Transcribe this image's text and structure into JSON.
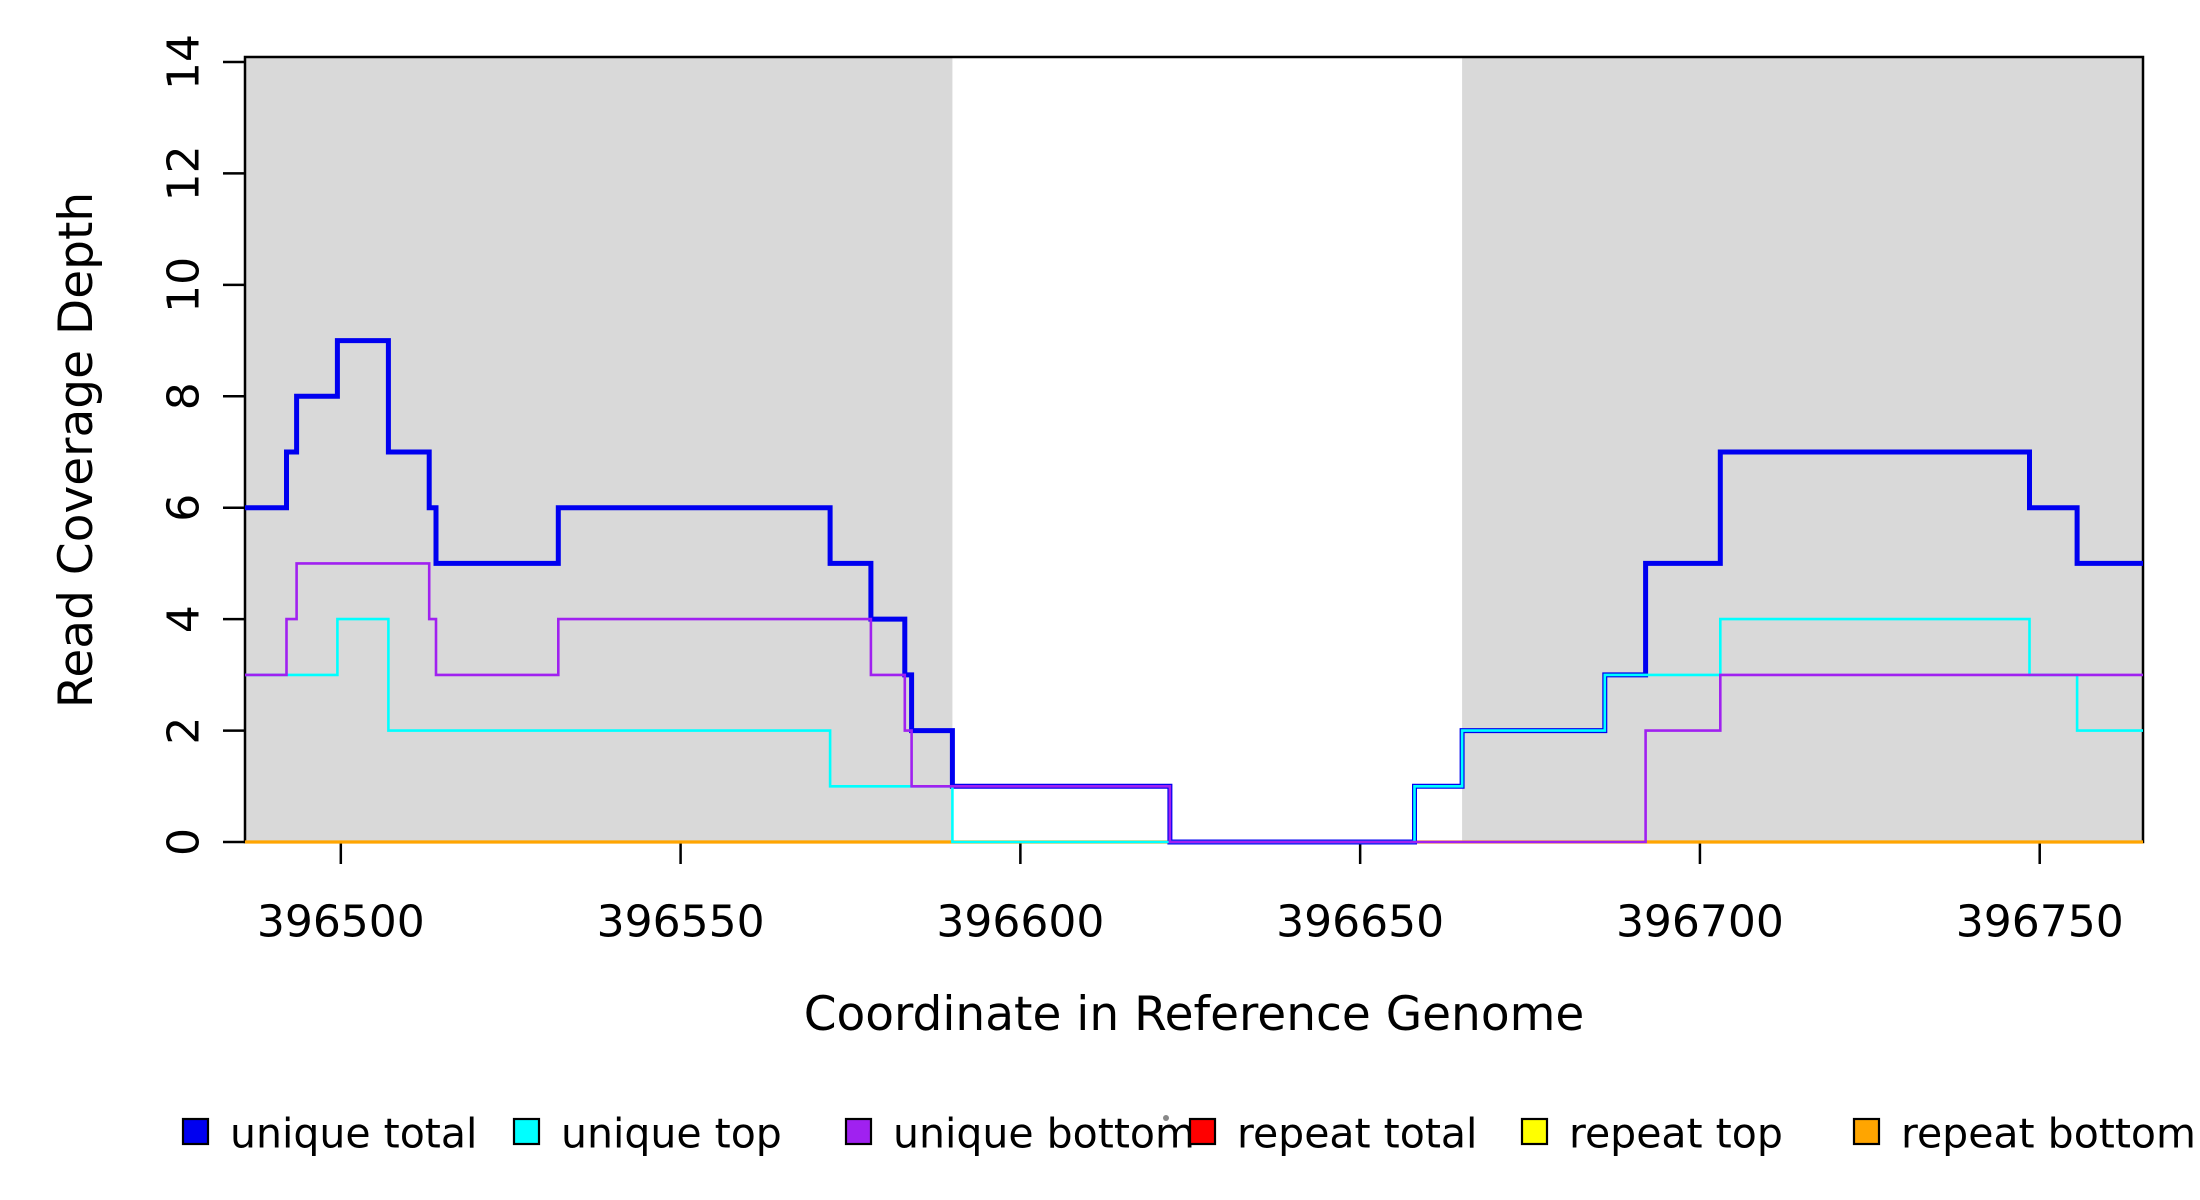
{
  "chart_data": {
    "type": "line",
    "subtype": "step-coverage",
    "title": "",
    "xlabel": "Coordinate in Reference Genome",
    "ylabel": "Read Coverage Depth",
    "xlim": [
      396485.9,
      396765.2
    ],
    "ylim": [
      0,
      14
    ],
    "x_ticks": [
      396500,
      396550,
      396600,
      396650,
      396700,
      396750
    ],
    "y_ticks": [
      0,
      2,
      4,
      6,
      8,
      10,
      12,
      14
    ],
    "grid": false,
    "shade_color": "#D9D9D9",
    "shaded_regions": [
      {
        "name": "unique-region-left",
        "x0": 396485.9,
        "x1": 396590.0
      },
      {
        "name": "unique-region-right",
        "x0": 396665.0,
        "x1": 396765.2
      }
    ],
    "series": [
      {
        "name": "repeat total",
        "color": "#FF0000",
        "width": 2.6,
        "points": [
          [
            396485.9,
            0
          ]
        ]
      },
      {
        "name": "repeat top",
        "color": "#FFFF00",
        "width": 2.6,
        "points": [
          [
            396485.9,
            0
          ]
        ]
      },
      {
        "name": "repeat bottom",
        "color": "#FFA500",
        "width": 3.2,
        "points": [
          [
            396485.9,
            0
          ]
        ]
      },
      {
        "name": "unique total",
        "color": "#0000F0",
        "width": 5.0,
        "points": [
          [
            396485.9,
            6
          ],
          [
            396492,
            7
          ],
          [
            396493.5,
            8
          ],
          [
            396499.5,
            9
          ],
          [
            396507,
            7
          ],
          [
            396513,
            6
          ],
          [
            396514,
            5
          ],
          [
            396532,
            6
          ],
          [
            396572,
            5
          ],
          [
            396578,
            4
          ],
          [
            396583,
            3
          ],
          [
            396584,
            2
          ],
          [
            396590,
            1
          ],
          [
            396622,
            0
          ],
          [
            396658,
            1
          ],
          [
            396665,
            2
          ],
          [
            396686,
            3
          ],
          [
            396692,
            5
          ],
          [
            396703,
            7
          ],
          [
            396748.5,
            6
          ],
          [
            396755.5,
            5
          ]
        ]
      },
      {
        "name": "unique top",
        "color": "#00FFFF",
        "width": 2.6,
        "points": [
          [
            396485.9,
            3
          ],
          [
            396499.5,
            4
          ],
          [
            396507,
            2
          ],
          [
            396572,
            1
          ],
          [
            396590,
            0
          ],
          [
            396658,
            1
          ],
          [
            396665,
            2
          ],
          [
            396686,
            3
          ],
          [
            396703,
            4
          ],
          [
            396748.5,
            3
          ],
          [
            396755.5,
            2
          ]
        ]
      },
      {
        "name": "unique bottom",
        "color": "#A021F0",
        "width": 2.6,
        "points": [
          [
            396485.9,
            3
          ],
          [
            396492,
            4
          ],
          [
            396493.5,
            5
          ],
          [
            396513,
            4
          ],
          [
            396514,
            3
          ],
          [
            396532,
            4
          ],
          [
            396578,
            3
          ],
          [
            396583,
            2
          ],
          [
            396584,
            1
          ],
          [
            396622,
            0
          ],
          [
            396692,
            2
          ],
          [
            396703,
            3
          ]
        ]
      }
    ],
    "legend": {
      "position": "bottom",
      "entries": [
        {
          "label": "unique total",
          "color": "#0000F0"
        },
        {
          "label": "unique top",
          "color": "#00FFFF"
        },
        {
          "label": "unique bottom",
          "color": "#A021F0"
        },
        {
          "label": "repeat total",
          "color": "#FF0000"
        },
        {
          "label": "repeat top",
          "color": "#FFFF00"
        },
        {
          "label": "repeat bottom",
          "color": "#FFA500"
        }
      ]
    },
    "decorations": {
      "stray_dot_color": "#555555"
    }
  }
}
